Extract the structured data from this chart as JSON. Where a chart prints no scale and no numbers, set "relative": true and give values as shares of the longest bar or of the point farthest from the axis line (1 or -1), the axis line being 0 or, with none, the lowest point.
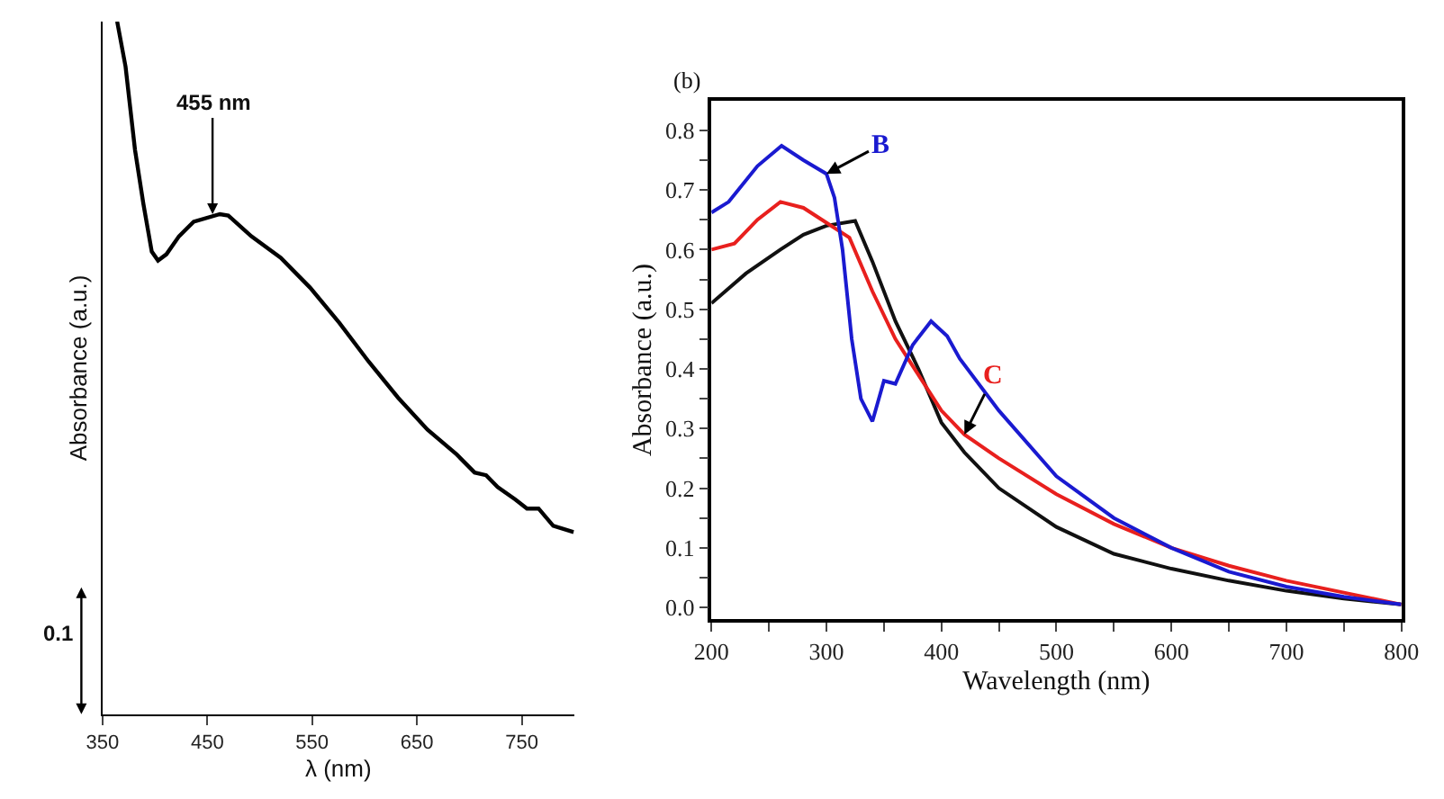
{
  "chart_data": [
    {
      "type": "line",
      "relative": true,
      "xlabel": "λ (nm)",
      "ylabel": "Absorbance (a.u.)",
      "xlim": [
        350,
        800
      ],
      "xticks": [
        350,
        450,
        550,
        650,
        750
      ],
      "marker": "none",
      "line_style": "solid",
      "annotations": [
        {
          "text": "455 nm",
          "x": 455,
          "y": 0.722
        },
        "0.1"
      ],
      "x": [
        364,
        372,
        381,
        389,
        397,
        403,
        411,
        423,
        437,
        462,
        470,
        492,
        520,
        548,
        576,
        604,
        632,
        660,
        688,
        705,
        716,
        727,
        744,
        755,
        766,
        780,
        799.5
      ],
      "series": [
        {
          "color": "#000000",
          "values": [
            1.0,
            0.935,
            0.815,
            0.737,
            0.668,
            0.655,
            0.664,
            0.69,
            0.711,
            0.722,
            0.72,
            0.69,
            0.659,
            0.616,
            0.565,
            0.509,
            0.457,
            0.411,
            0.375,
            0.349,
            0.345,
            0.328,
            0.31,
            0.297,
            0.297,
            0.272,
            0.263
          ]
        }
      ]
    },
    {
      "type": "line",
      "xlabel": "Wavelength (nm)",
      "ylabel": "Absorbance (a.u.)",
      "xlim": [
        200,
        800
      ],
      "ylim": [
        -0.02,
        0.85
      ],
      "marker": "none",
      "line_style": "solid",
      "xticks": [
        200,
        {
          "value": 250,
          "label": null
        },
        300,
        {
          "value": 350,
          "label": null
        },
        400,
        {
          "value": 450,
          "label": null
        },
        500,
        {
          "value": 550,
          "label": null
        },
        600,
        {
          "value": 650,
          "label": null
        },
        700,
        {
          "value": 750,
          "label": null
        },
        800
      ],
      "yticks": [
        {
          "value": 0,
          "label": "0.0"
        },
        {
          "value": 0.05,
          "label": null
        },
        0.1,
        {
          "value": 0.15,
          "label": null
        },
        0.2,
        {
          "value": 0.25,
          "label": null
        },
        0.3,
        {
          "value": 0.35,
          "label": null
        },
        0.4,
        {
          "value": 0.45,
          "label": null
        },
        0.5,
        {
          "value": 0.55,
          "label": null
        },
        0.6,
        {
          "value": 0.65,
          "label": null
        },
        0.7,
        {
          "value": 0.75,
          "label": null
        },
        0.8
      ],
      "annotations": [
        "(b)"
      ],
      "series": [
        {
          "color": "#111111",
          "x": [
            200,
            230,
            260,
            280,
            300,
            325,
            340,
            360,
            380,
            400,
            420,
            450,
            500,
            550,
            600,
            650,
            700,
            750,
            800
          ],
          "values": [
            0.51,
            0.56,
            0.6,
            0.625,
            0.64,
            0.648,
            0.58,
            0.48,
            0.4,
            0.31,
            0.26,
            0.2,
            0.135,
            0.09,
            0.065,
            0.045,
            0.028,
            0.015,
            0.005
          ]
        },
        {
          "name": "C",
          "color": "#e8201e",
          "x": [
            200,
            220,
            240,
            260,
            280,
            300,
            320,
            340,
            360,
            380,
            400,
            420,
            450,
            500,
            550,
            600,
            650,
            700,
            750,
            800
          ],
          "values": [
            0.6,
            0.61,
            0.65,
            0.68,
            0.67,
            0.645,
            0.62,
            0.53,
            0.45,
            0.39,
            0.33,
            0.29,
            0.25,
            0.19,
            0.14,
            0.1,
            0.07,
            0.045,
            0.025,
            0.005
          ]
        },
        {
          "name": "B",
          "color": "#1a1ad0",
          "x": [
            200,
            215,
            240,
            261,
            280,
            300,
            307,
            314,
            322,
            330,
            340,
            350,
            360,
            375,
            391,
            405,
            416,
            450,
            500,
            550,
            600,
            650,
            700,
            750,
            800
          ],
          "values": [
            0.662,
            0.68,
            0.74,
            0.774,
            0.75,
            0.727,
            0.687,
            0.6,
            0.45,
            0.35,
            0.312,
            0.38,
            0.375,
            0.44,
            0.48,
            0.455,
            0.417,
            0.33,
            0.22,
            0.15,
            0.1,
            0.06,
            0.035,
            0.018,
            0.005
          ]
        }
      ]
    }
  ]
}
